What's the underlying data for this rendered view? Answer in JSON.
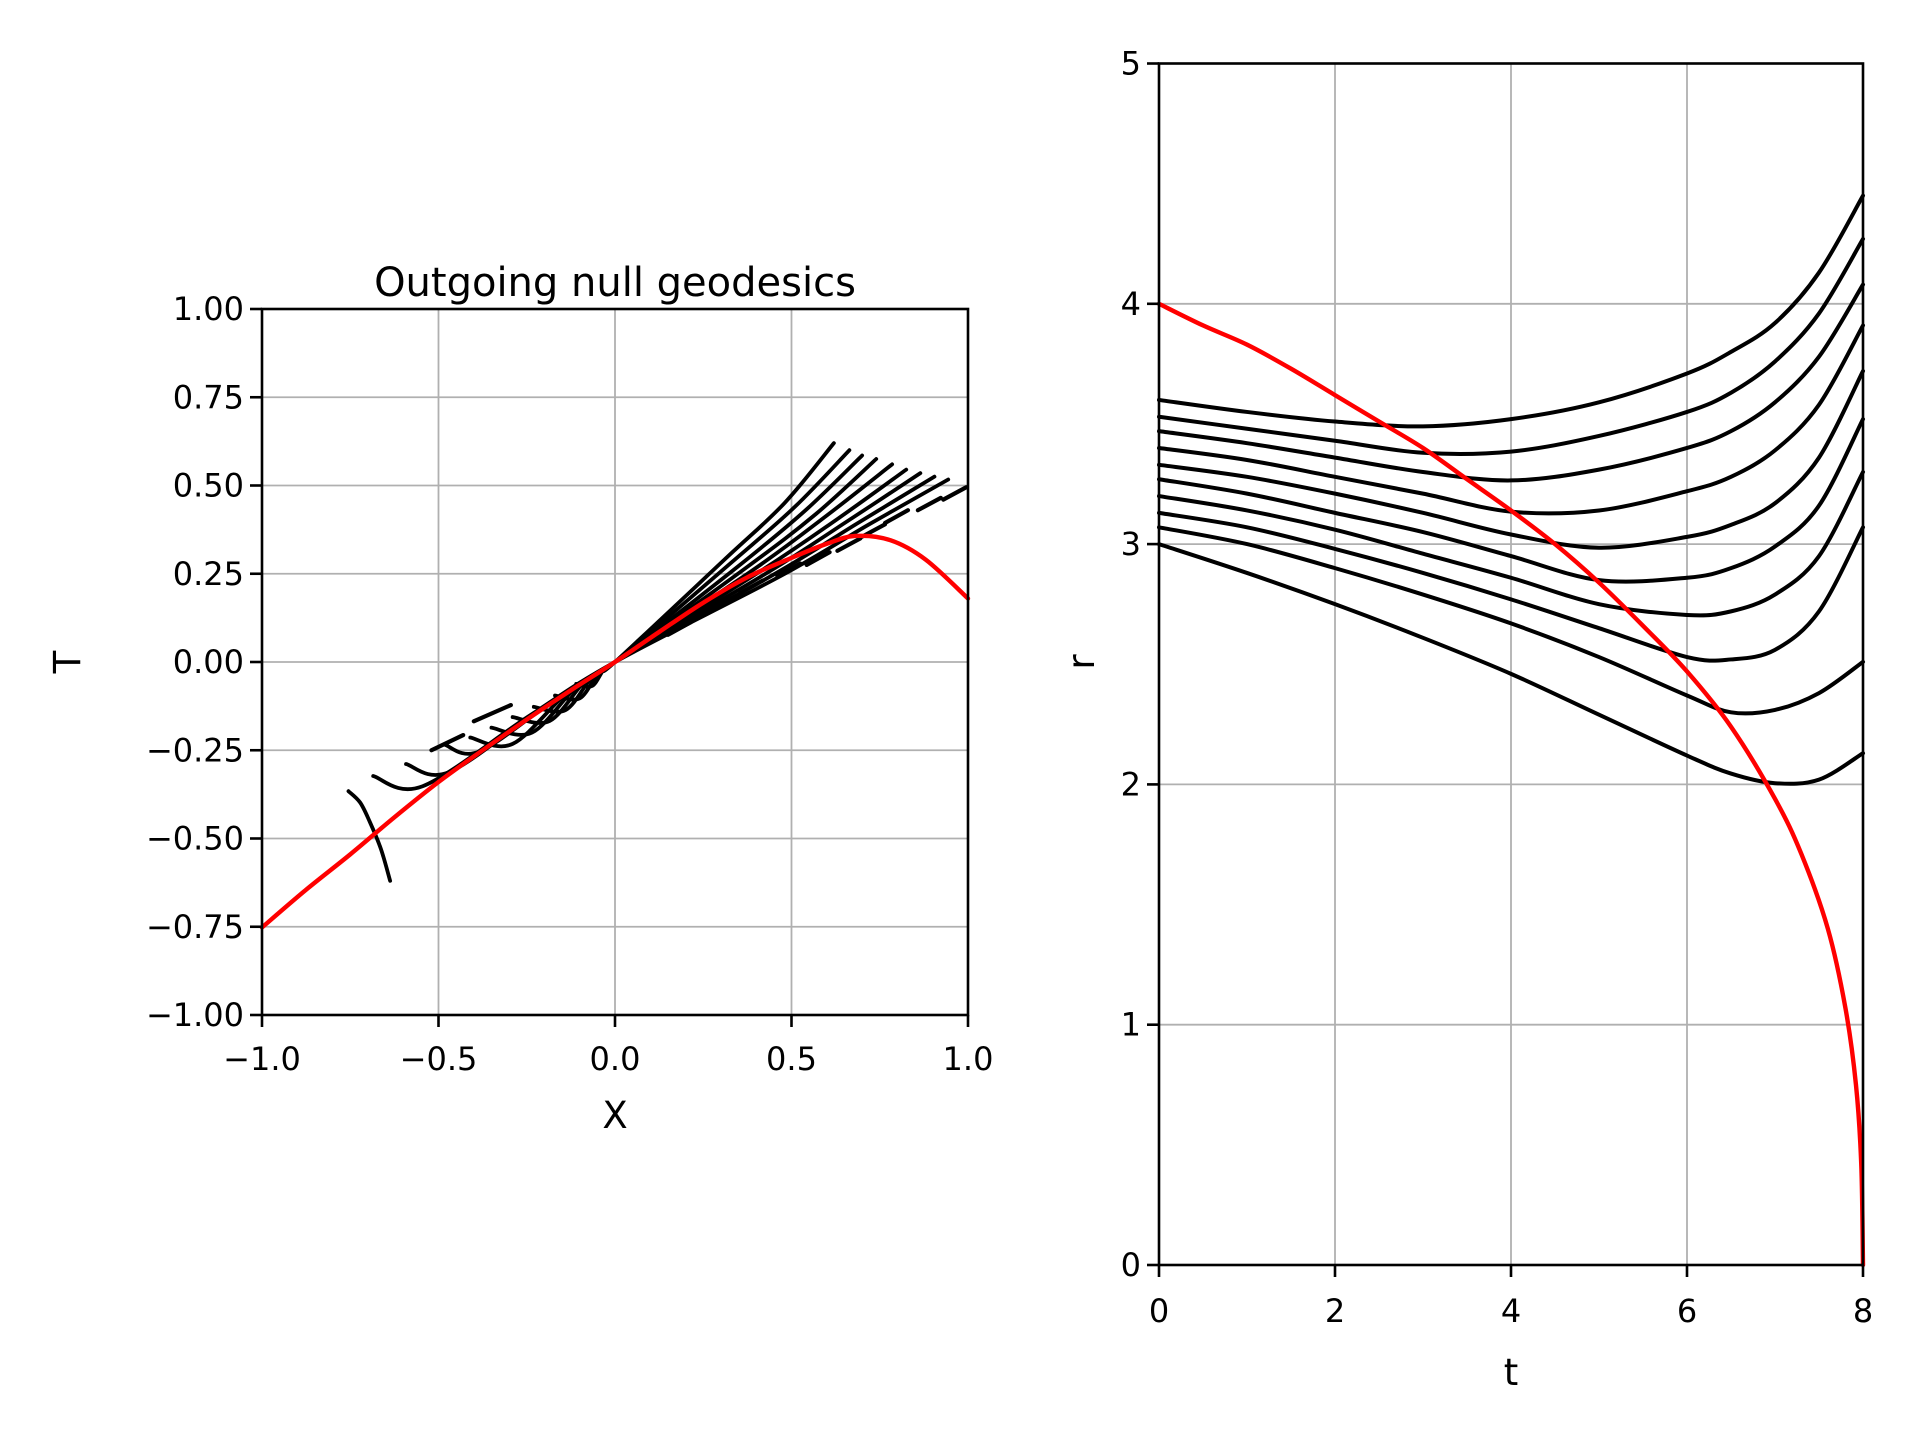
{
  "figure_title": "Outgoing null geodesics",
  "colors": {
    "background": "#ffffff",
    "geodesic": "#000000",
    "surface": "#ff0000",
    "grid": "#b0b0b0",
    "spine": "#000000"
  },
  "chart_data": [
    {
      "id": "conformal-diagram",
      "type": "line",
      "title": "Outgoing null geodesics",
      "xlabel": "X",
      "ylabel": "T",
      "xlim": [
        -1,
        1
      ],
      "ylim": [
        -1,
        1
      ],
      "grid": true,
      "xticks": [
        -1.0,
        -0.5,
        0.0,
        0.5,
        1.0
      ],
      "xtick_labels": [
        "−1.0",
        "−0.5",
        "0.0",
        "0.5",
        "1.0"
      ],
      "yticks": [
        1.0,
        0.75,
        0.5,
        0.25,
        0.0,
        -0.25,
        -0.5,
        -0.75,
        -1.0
      ],
      "ytick_labels": [
        "1.00",
        "0.75",
        "0.50",
        "0.25",
        "0.00",
        "−0.25",
        "−0.50",
        "−0.75",
        "−1.00"
      ],
      "red_surface": [
        [
          -1.0,
          -0.752
        ],
        [
          -0.875,
          -0.645
        ],
        [
          -0.75,
          -0.545
        ],
        [
          -0.625,
          -0.44
        ],
        [
          -0.5,
          -0.34
        ],
        [
          -0.375,
          -0.25
        ],
        [
          -0.25,
          -0.163
        ],
        [
          -0.125,
          -0.08
        ],
        [
          0,
          0
        ],
        [
          0.125,
          0.085
        ],
        [
          0.25,
          0.168
        ],
        [
          0.375,
          0.24
        ],
        [
          0.5,
          0.295
        ],
        [
          0.6,
          0.335
        ],
        [
          0.68,
          0.357
        ],
        [
          0.78,
          0.345
        ],
        [
          0.88,
          0.29
        ],
        [
          1.0,
          0.18
        ]
      ],
      "geodesics": [
        [
          [
            -0.11,
            -0.062
          ],
          [
            -0.065,
            -0.068
          ],
          [
            -0.03,
            -0.019
          ],
          [
            0,
            0
          ],
          [
            0.31,
            0.29
          ],
          [
            0.48,
            0.45
          ],
          [
            0.62,
            0.62
          ]
        ],
        [
          [
            -0.17,
            -0.095
          ],
          [
            -0.1,
            -0.103
          ],
          [
            -0.045,
            -0.028
          ],
          [
            0,
            0
          ],
          [
            0.33,
            0.282
          ],
          [
            0.51,
            0.44
          ],
          [
            0.664,
            0.6
          ]
        ],
        [
          [
            -0.23,
            -0.127
          ],
          [
            -0.14,
            -0.136
          ],
          [
            -0.063,
            -0.04
          ],
          [
            0,
            0
          ],
          [
            0.35,
            0.272
          ],
          [
            0.54,
            0.43
          ],
          [
            0.7,
            0.585
          ]
        ],
        [
          [
            -0.29,
            -0.156
          ],
          [
            -0.185,
            -0.167
          ],
          [
            -0.083,
            -0.052
          ],
          [
            0,
            0
          ],
          [
            0.37,
            0.266
          ],
          [
            0.57,
            0.42
          ],
          [
            0.74,
            0.575
          ]
        ],
        [
          [
            -0.35,
            -0.186
          ],
          [
            -0.235,
            -0.2
          ],
          [
            -0.106,
            -0.067
          ],
          [
            0,
            0
          ],
          [
            0.39,
            0.26
          ],
          [
            0.6,
            0.415
          ],
          [
            0.785,
            0.56
          ]
        ],
        [
          [
            -0.41,
            -0.214
          ],
          [
            -0.29,
            -0.232
          ],
          [
            -0.13,
            -0.082
          ],
          [
            0,
            0
          ],
          [
            0.41,
            0.256
          ],
          [
            0.63,
            0.405
          ],
          [
            0.825,
            0.545
          ]
        ],
        [
          [
            -0.483,
            -0.234
          ],
          [
            -0.385,
            -0.254
          ],
          [
            -0.173,
            -0.109
          ],
          [
            0,
            0
          ],
          [
            0.43,
            0.252
          ],
          [
            0.66,
            0.4
          ],
          [
            0.865,
            0.535
          ]
        ],
        [
          [
            -0.592,
            -0.289
          ],
          [
            -0.47,
            -0.312
          ],
          [
            -0.21,
            -0.132
          ],
          [
            0,
            0
          ],
          [
            0.45,
            0.248
          ],
          [
            0.69,
            0.395
          ],
          [
            0.905,
            0.525
          ]
        ],
        [
          [
            -0.685,
            -0.323
          ],
          [
            -0.545,
            -0.352
          ],
          [
            -0.245,
            -0.154
          ],
          [
            0,
            0
          ],
          [
            0.47,
            0.244
          ],
          [
            0.72,
            0.39
          ],
          [
            0.944,
            0.517
          ]
        ]
      ],
      "plunging_arc": [
        [
          -0.755,
          -0.366
        ],
        [
          -0.722,
          -0.398
        ],
        [
          -0.695,
          -0.452
        ],
        [
          -0.663,
          -0.53
        ],
        [
          -0.637,
          -0.62
        ]
      ],
      "jog_segments": [
        [
          [
            0.15,
            0.077
          ],
          [
            0.215,
            0.113
          ]
        ],
        [
          [
            0.245,
            0.132
          ],
          [
            0.31,
            0.168
          ]
        ],
        [
          [
            0.354,
            0.195
          ],
          [
            0.419,
            0.231
          ]
        ],
        [
          [
            0.46,
            0.243
          ],
          [
            0.525,
            0.279
          ]
        ],
        [
          [
            0.543,
            0.275
          ],
          [
            0.608,
            0.311
          ]
        ],
        [
          [
            0.63,
            0.315
          ],
          [
            0.695,
            0.35
          ]
        ],
        [
          [
            0.7,
            0.355
          ],
          [
            0.765,
            0.39
          ]
        ],
        [
          [
            0.765,
            0.394
          ],
          [
            0.83,
            0.43
          ]
        ],
        [
          [
            0.858,
            0.43
          ],
          [
            0.923,
            0.465
          ]
        ],
        [
          [
            0.93,
            0.46
          ],
          [
            0.995,
            0.495
          ]
        ],
        [
          [
            -0.4,
            -0.168
          ],
          [
            -0.295,
            -0.122
          ]
        ],
        [
          [
            -0.52,
            -0.25
          ],
          [
            -0.43,
            -0.207
          ]
        ]
      ]
    },
    {
      "id": "radius-vs-time",
      "type": "line",
      "title": "",
      "xlabel": "t",
      "ylabel": "r",
      "xlim": [
        0,
        8
      ],
      "ylim": [
        0,
        5
      ],
      "grid": true,
      "xticks": [
        0,
        2,
        4,
        6,
        8
      ],
      "xtick_labels": [
        "0",
        "2",
        "4",
        "6",
        "8"
      ],
      "yticks": [
        5,
        4,
        3,
        2,
        1,
        0
      ],
      "ytick_labels": [
        "5",
        "4",
        "3",
        "2",
        "1",
        "0"
      ],
      "t_samples": [
        0,
        1,
        2,
        3,
        4,
        5,
        6,
        6.5,
        7,
        7.5,
        8
      ],
      "black_series": [
        [
          3.6,
          3.55,
          3.51,
          3.49,
          3.52,
          3.59,
          3.71,
          3.8,
          3.92,
          4.13,
          4.45
        ],
        [
          3.53,
          3.48,
          3.43,
          3.38,
          3.385,
          3.45,
          3.55,
          3.63,
          3.76,
          3.96,
          4.27
        ],
        [
          3.47,
          3.42,
          3.36,
          3.3,
          3.265,
          3.31,
          3.4,
          3.47,
          3.59,
          3.78,
          4.08
        ],
        [
          3.4,
          3.35,
          3.28,
          3.21,
          3.135,
          3.14,
          3.22,
          3.28,
          3.39,
          3.58,
          3.91
        ],
        [
          3.33,
          3.28,
          3.21,
          3.13,
          3.04,
          2.985,
          3.03,
          3.08,
          3.17,
          3.36,
          3.72
        ],
        [
          3.27,
          3.21,
          3.13,
          3.05,
          2.95,
          2.85,
          2.86,
          2.9,
          2.99,
          3.16,
          3.52
        ],
        [
          3.2,
          3.14,
          3.06,
          2.96,
          2.86,
          2.75,
          2.705,
          2.72,
          2.79,
          2.95,
          3.3
        ],
        [
          3.13,
          3.07,
          2.98,
          2.88,
          2.77,
          2.65,
          2.53,
          2.52,
          2.56,
          2.72,
          3.07
        ],
        [
          3.07,
          3.0,
          2.9,
          2.79,
          2.67,
          2.53,
          2.37,
          2.3,
          2.31,
          2.38,
          2.51
        ],
        [
          3.0,
          2.88,
          2.75,
          2.61,
          2.46,
          2.29,
          2.12,
          2.045,
          2.005,
          2.02,
          2.13
        ]
      ],
      "red_surface": [
        [
          0,
          4.0
        ],
        [
          0.5,
          3.91
        ],
        [
          1,
          3.83
        ],
        [
          1.5,
          3.73
        ],
        [
          2,
          3.62
        ],
        [
          2.5,
          3.51
        ],
        [
          3,
          3.4
        ],
        [
          3.5,
          3.27
        ],
        [
          4,
          3.14
        ],
        [
          4.5,
          3.0
        ],
        [
          5,
          2.84
        ],
        [
          5.5,
          2.66
        ],
        [
          6,
          2.47
        ],
        [
          6.5,
          2.24
        ],
        [
          7,
          1.94
        ],
        [
          7.3,
          1.71
        ],
        [
          7.6,
          1.4
        ],
        [
          7.8,
          1.07
        ],
        [
          7.92,
          0.75
        ],
        [
          7.98,
          0.42
        ],
        [
          8,
          0
        ]
      ]
    }
  ]
}
